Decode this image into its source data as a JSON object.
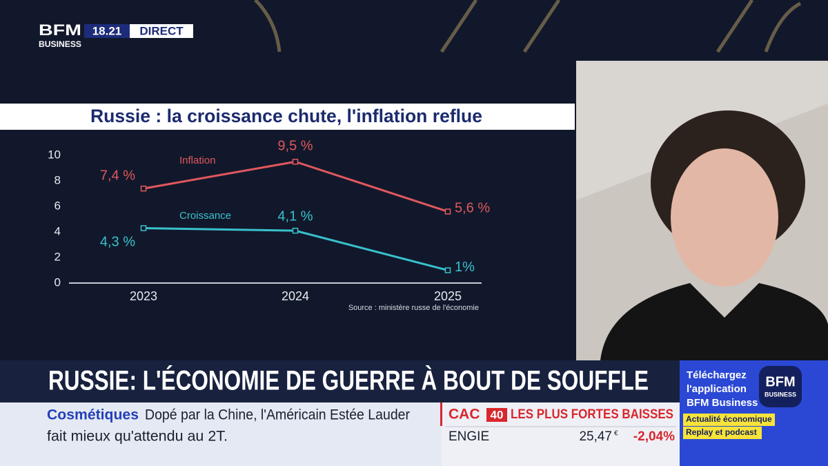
{
  "header": {
    "logo_top": "BFM",
    "logo_bottom": "BUSINESS",
    "time": "18.21",
    "live": "DIRECT"
  },
  "chart_data": {
    "type": "line",
    "title": "Russie : la croissance chute, l'inflation reflue",
    "categories": [
      "2023",
      "2024",
      "2025"
    ],
    "series": [
      {
        "name": "Inflation",
        "color": "#e0585e",
        "values": [
          7.4,
          9.5,
          5.6
        ],
        "value_labels": [
          "7,4 %",
          "9,5 %",
          "5,6 %"
        ]
      },
      {
        "name": "Croissance",
        "color": "#38c2cc",
        "values": [
          4.3,
          4.1,
          1
        ],
        "value_labels": [
          "4,3 %",
          "4,1 %",
          "1%"
        ]
      }
    ],
    "ylim": [
      0,
      10
    ],
    "yticks": [
      0,
      2,
      4,
      6,
      8,
      10
    ],
    "source": "Source : ministère russe de l'économie"
  },
  "headline": "RUSSIE: L'ÉCONOMIE DE GUERRE À BOUT DE SOUFFLE",
  "ticker": {
    "topic": "Cosmétiques",
    "line1": "Dopé par la Chine, l'Américain Estée Lauder",
    "line2": "fait mieux qu'attendu au 2T."
  },
  "market": {
    "index": "CAC",
    "index_num": "40",
    "heading": "LES PLUS FORTES BAISSES",
    "stock": "ENGIE",
    "price": "25,47",
    "currency": "€",
    "change": "-2,04%"
  },
  "promo": {
    "line1": "Téléchargez",
    "line2": "l'application",
    "line3": "BFM Business",
    "logo_top": "BFM",
    "logo_bottom": "BUSINESS",
    "tag1": "Actualité économique",
    "tag2": "Replay et podcast"
  }
}
